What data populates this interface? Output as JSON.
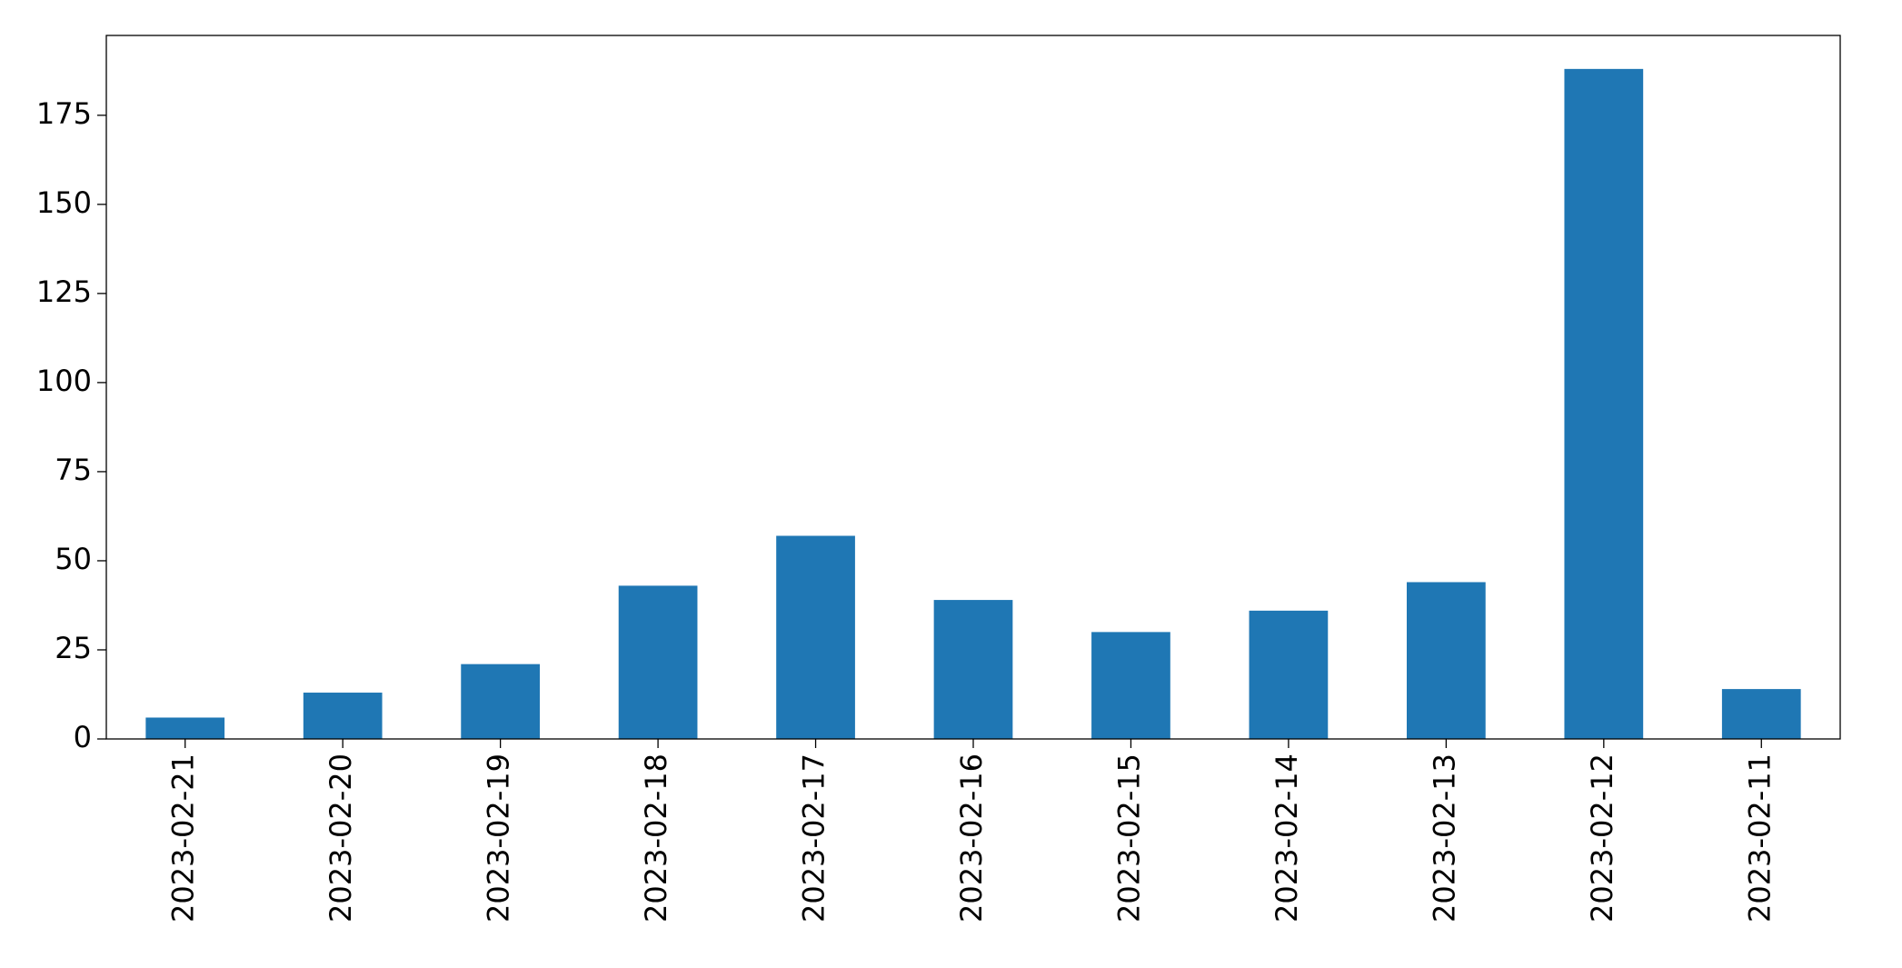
{
  "chart_data": {
    "type": "bar",
    "categories": [
      "2023-02-21",
      "2023-02-20",
      "2023-02-19",
      "2023-02-18",
      "2023-02-17",
      "2023-02-16",
      "2023-02-15",
      "2023-02-14",
      "2023-02-13",
      "2023-02-12",
      "2023-02-11"
    ],
    "values": [
      6,
      13,
      21,
      43,
      57,
      39,
      30,
      36,
      44,
      188,
      14
    ],
    "color": "#1f77b4",
    "ylim": [
      0,
      197.4
    ],
    "yticks": [
      0,
      25,
      50,
      75,
      100,
      125,
      150,
      175
    ],
    "grid": false
  }
}
